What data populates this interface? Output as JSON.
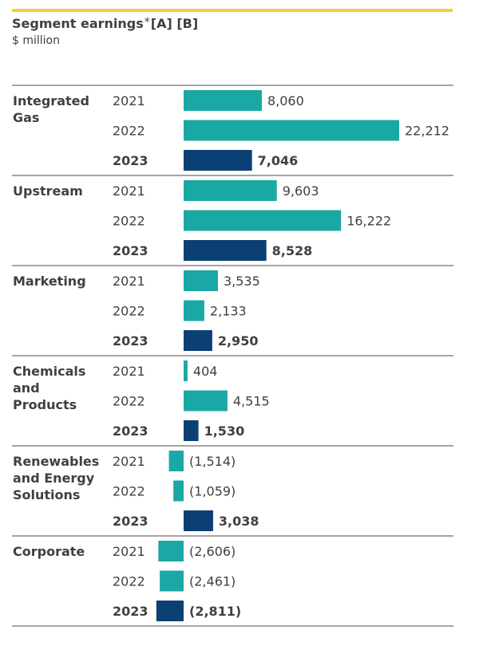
{
  "title": {
    "main": "Segment earnings",
    "asterisk": "*",
    "notes": "[A] [B]"
  },
  "unit": "$ million",
  "colors": {
    "prior_years": "#1aa8a5",
    "current_year": "#0c3f74",
    "accent_line": "#f5d033",
    "text": "#404040",
    "rule": "#6e6e6e"
  },
  "chart_data": {
    "type": "bar",
    "orientation": "horizontal",
    "title": "Segment earnings",
    "unit": "$ million",
    "series_years": [
      "2021",
      "2022",
      "2023"
    ],
    "highlight_year": "2023",
    "groups": [
      {
        "label": [
          "Integrated",
          "Gas"
        ],
        "values": [
          8060,
          22212,
          7046
        ],
        "labels": [
          "8,060",
          "22,212",
          "7,046"
        ]
      },
      {
        "label": [
          "Upstream"
        ],
        "values": [
          9603,
          16222,
          8528
        ],
        "labels": [
          "9,603",
          "16,222",
          "8,528"
        ]
      },
      {
        "label": [
          "Marketing"
        ],
        "values": [
          3535,
          2133,
          2950
        ],
        "labels": [
          "3,535",
          "2,133",
          "2,950"
        ]
      },
      {
        "label": [
          "Chemicals",
          "and",
          "Products"
        ],
        "values": [
          404,
          4515,
          1530
        ],
        "labels": [
          "404",
          "4,515",
          "1,530"
        ]
      },
      {
        "label": [
          "Renewables",
          "and Energy",
          "Solutions"
        ],
        "values": [
          -1514,
          -1059,
          3038
        ],
        "labels": [
          "(1,514)",
          "(1,059)",
          "3,038"
        ]
      },
      {
        "label": [
          "Corporate"
        ],
        "values": [
          -2606,
          -2461,
          -2811
        ],
        "labels": [
          "(2,606)",
          "(2,461)",
          "(2,811)"
        ]
      }
    ]
  }
}
